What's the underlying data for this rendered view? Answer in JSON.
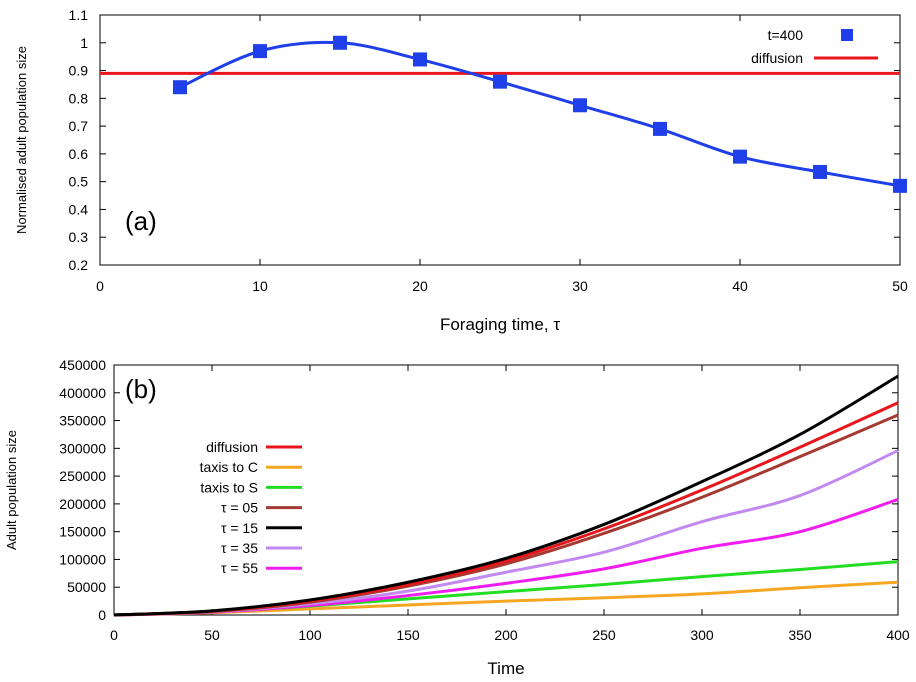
{
  "chart_data": [
    {
      "type": "line",
      "panel_label": "(a)",
      "xlabel": "Foraging time, τ",
      "ylabel": "Normalised adult population size",
      "xlim": [
        0,
        50
      ],
      "ylim": [
        0.2,
        1.1
      ],
      "xticks": [
        0,
        10,
        20,
        30,
        40,
        50
      ],
      "yticks": [
        0.2,
        0.3,
        0.4,
        0.5,
        0.6,
        0.7,
        0.8,
        0.9,
        1.0,
        1.1
      ],
      "ytick_labels": [
        "0.2",
        "0.3",
        "0.4",
        "0.5",
        "0.6",
        "0.7",
        "0.8",
        "0.9",
        "1",
        "1.1"
      ],
      "grid": false,
      "legend_position": "top-right",
      "series": [
        {
          "name": "t=400",
          "color": "#1f3fe8",
          "marker": "square",
          "x": [
            5,
            10,
            15,
            20,
            25,
            30,
            35,
            40,
            45,
            50
          ],
          "y": [
            0.84,
            0.97,
            1.0,
            0.94,
            0.86,
            0.775,
            0.69,
            0.59,
            0.535,
            0.485
          ]
        },
        {
          "name": "diffusion",
          "color": "#e8151b",
          "marker": "none",
          "x": [
            0,
            50
          ],
          "y": [
            0.89,
            0.89
          ]
        }
      ]
    },
    {
      "type": "line",
      "panel_label": "(b)",
      "xlabel": "Time",
      "ylabel": "Adult population size",
      "xlim": [
        0,
        400
      ],
      "ylim": [
        0,
        450000
      ],
      "xticks": [
        0,
        50,
        100,
        150,
        200,
        250,
        300,
        350,
        400
      ],
      "yticks": [
        0,
        50000,
        100000,
        150000,
        200000,
        250000,
        300000,
        350000,
        400000,
        450000
      ],
      "grid": false,
      "legend_position": "left",
      "x": [
        0,
        50,
        100,
        150,
        200,
        250,
        300,
        350,
        400
      ],
      "series": [
        {
          "name": "diffusion",
          "color": "#e8151b",
          "values": [
            0,
            7000,
            25000,
            55000,
            97000,
            155000,
            225000,
            302000,
            382000
          ]
        },
        {
          "name": "taxis to C",
          "color": "#f5a623",
          "values": [
            0,
            4000,
            11000,
            18000,
            25000,
            31000,
            38000,
            49000,
            59000
          ]
        },
        {
          "name": "taxis to S",
          "color": "#22dd22",
          "values": [
            0,
            6000,
            16000,
            29000,
            42000,
            55000,
            69000,
            82000,
            96000
          ]
        },
        {
          "name": "τ = 05",
          "color": "#a63a32",
          "values": [
            0,
            6000,
            23000,
            52000,
            92000,
            147000,
            212000,
            285000,
            360000
          ]
        },
        {
          "name": "τ = 15",
          "color": "#000000",
          "values": [
            0,
            7500,
            27000,
            59000,
            102000,
            163000,
            240000,
            325000,
            430000
          ]
        },
        {
          "name": "τ = 35",
          "color": "#c28af0",
          "values": [
            0,
            5500,
            20000,
            43000,
            77000,
            113000,
            168000,
            215000,
            296000
          ]
        },
        {
          "name": "τ = 55",
          "color": "#f01cf0",
          "values": [
            0,
            5000,
            17000,
            35000,
            57000,
            83000,
            120000,
            150000,
            208000
          ]
        }
      ]
    }
  ]
}
